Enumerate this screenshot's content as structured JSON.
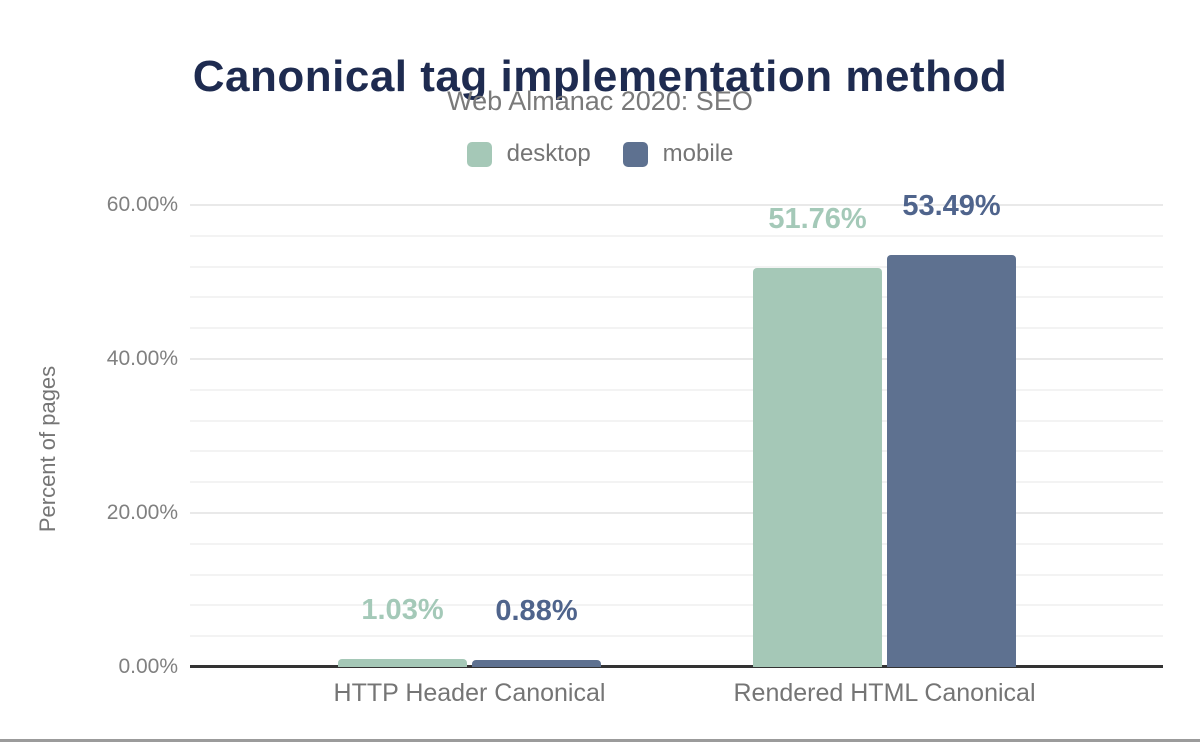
{
  "page": {
    "bottom_border_color": "#9b9b9b"
  },
  "chart_data": {
    "type": "bar",
    "title": "Canonical tag implementation method",
    "subtitle": "Web Almanac 2020: SEO",
    "ylabel": "Percent of pages",
    "xlabel": "",
    "categories": [
      "HTTP Header Canonical",
      "Rendered HTML Canonical"
    ],
    "series": [
      {
        "name": "desktop",
        "color": "#a5c8b7",
        "label_color": "#a4c9b8",
        "values": [
          1.03,
          51.76
        ],
        "value_labels": [
          "1.03%",
          "51.76%"
        ]
      },
      {
        "name": "mobile",
        "color": "#5e7190",
        "label_color": "#4f648c",
        "values": [
          0.88,
          53.49
        ],
        "value_labels": [
          "0.88%",
          "53.49%"
        ]
      }
    ],
    "ylim": [
      0,
      60
    ],
    "y_ticks": [
      {
        "value": 0,
        "label": "0.00%"
      },
      {
        "value": 20,
        "label": "20.00%"
      },
      {
        "value": 40,
        "label": "40.00%"
      },
      {
        "value": 60,
        "label": "60.00%"
      }
    ],
    "minor_gridline_step": 4,
    "grid": true,
    "legend_position": "top",
    "colors": {
      "title": "#1e2b50",
      "subtitle": "#7a7a7a",
      "axis_text": "#808080",
      "category_text": "#757575",
      "baseline": "#333333",
      "minor_gridline": "#f3f3f3",
      "major_gridline": "#e9e9e9"
    }
  }
}
